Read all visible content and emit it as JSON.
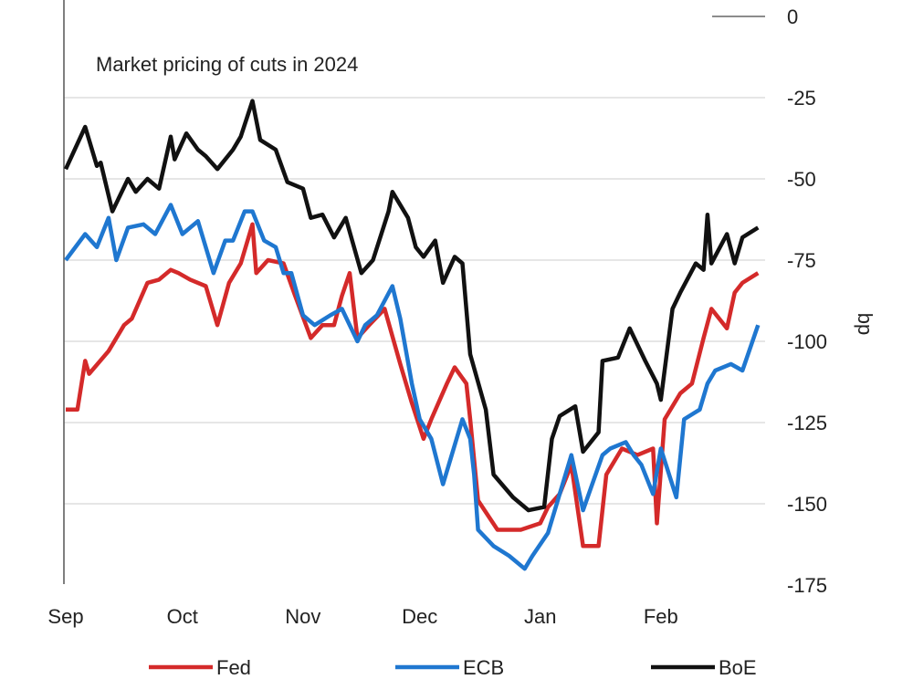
{
  "chart_data": {
    "type": "line",
    "title": "Market pricing of cuts in 2024",
    "xlabel": "",
    "ylabel": "bp",
    "x_unit": "days since 1 Sep 2023",
    "xlim": [
      0,
      178
    ],
    "ylim": [
      -175,
      0
    ],
    "yticks": [
      0,
      -25,
      -50,
      -75,
      -100,
      -125,
      -150,
      -175
    ],
    "ytick_labels": [
      "0",
      "-25",
      "-50",
      "-75",
      "-100",
      "-125",
      "-150",
      "-175"
    ],
    "xticks": [
      0,
      30,
      61,
      91,
      122,
      153
    ],
    "xtick_labels": [
      "Sep",
      "Oct",
      "Nov",
      "Dec",
      "Jan",
      "Feb"
    ],
    "grid": true,
    "legend_position": "bottom",
    "series": [
      {
        "name": "Fed",
        "color": "#d42a2a",
        "points": [
          [
            0,
            -121
          ],
          [
            3,
            -121
          ],
          [
            5,
            -106
          ],
          [
            6,
            -110
          ],
          [
            11,
            -103
          ],
          [
            15,
            -95
          ],
          [
            17,
            -93
          ],
          [
            21,
            -82
          ],
          [
            24,
            -81
          ],
          [
            27,
            -78
          ],
          [
            29,
            -79
          ],
          [
            32,
            -81
          ],
          [
            36,
            -83
          ],
          [
            39,
            -95
          ],
          [
            42,
            -82
          ],
          [
            45,
            -76
          ],
          [
            48,
            -64
          ],
          [
            49,
            -79
          ],
          [
            52,
            -75
          ],
          [
            56,
            -76
          ],
          [
            59,
            -86
          ],
          [
            63,
            -99
          ],
          [
            66,
            -95
          ],
          [
            69,
            -95
          ],
          [
            71,
            -86
          ],
          [
            73,
            -79
          ],
          [
            75,
            -99
          ],
          [
            78,
            -95
          ],
          [
            82,
            -90
          ],
          [
            86,
            -107
          ],
          [
            89,
            -119
          ],
          [
            92,
            -130
          ],
          [
            94,
            -124
          ],
          [
            98,
            -113
          ],
          [
            100,
            -108
          ],
          [
            103,
            -113
          ],
          [
            104,
            -124
          ],
          [
            106,
            -149
          ],
          [
            111,
            -158
          ],
          [
            117,
            -158
          ],
          [
            122,
            -156
          ],
          [
            124,
            -151
          ],
          [
            127,
            -147
          ],
          [
            130,
            -138
          ],
          [
            133,
            -163
          ],
          [
            137,
            -163
          ],
          [
            139,
            -141
          ],
          [
            143,
            -133
          ],
          [
            147,
            -135
          ],
          [
            151,
            -133
          ],
          [
            152,
            -156
          ],
          [
            154,
            -124
          ],
          [
            158,
            -116
          ],
          [
            161,
            -113
          ],
          [
            164,
            -99
          ],
          [
            166,
            -90
          ],
          [
            170,
            -96
          ],
          [
            172,
            -85
          ],
          [
            174,
            -82
          ],
          [
            178,
            -79
          ]
        ]
      },
      {
        "name": "ECB",
        "color": "#1f77d0",
        "points": [
          [
            0,
            -75
          ],
          [
            5,
            -67
          ],
          [
            8,
            -71
          ],
          [
            11,
            -62
          ],
          [
            13,
            -75
          ],
          [
            16,
            -65
          ],
          [
            20,
            -64
          ],
          [
            23,
            -67
          ],
          [
            27,
            -58
          ],
          [
            30,
            -67
          ],
          [
            34,
            -63
          ],
          [
            38,
            -79
          ],
          [
            41,
            -69
          ],
          [
            43,
            -69
          ],
          [
            46,
            -60
          ],
          [
            48,
            -60
          ],
          [
            51,
            -69
          ],
          [
            54,
            -71
          ],
          [
            56,
            -79
          ],
          [
            58,
            -79
          ],
          [
            61,
            -92
          ],
          [
            64,
            -95
          ],
          [
            68,
            -92
          ],
          [
            71,
            -90
          ],
          [
            75,
            -100
          ],
          [
            77,
            -95
          ],
          [
            80,
            -92
          ],
          [
            84,
            -83
          ],
          [
            86,
            -93
          ],
          [
            89,
            -113
          ],
          [
            91,
            -124
          ],
          [
            94,
            -130
          ],
          [
            97,
            -144
          ],
          [
            99,
            -136
          ],
          [
            102,
            -124
          ],
          [
            104,
            -130
          ],
          [
            105,
            -141
          ],
          [
            106,
            -158
          ],
          [
            110,
            -163
          ],
          [
            114,
            -166
          ],
          [
            118,
            -170
          ],
          [
            120,
            -166
          ],
          [
            124,
            -159
          ],
          [
            127,
            -147
          ],
          [
            130,
            -135
          ],
          [
            133,
            -152
          ],
          [
            138,
            -135
          ],
          [
            140,
            -133
          ],
          [
            144,
            -131
          ],
          [
            146,
            -135
          ],
          [
            148,
            -138
          ],
          [
            151,
            -147
          ],
          [
            153,
            -133
          ],
          [
            157,
            -148
          ],
          [
            159,
            -124
          ],
          [
            163,
            -121
          ],
          [
            165,
            -113
          ],
          [
            167,
            -109
          ],
          [
            171,
            -107
          ],
          [
            174,
            -109
          ],
          [
            178,
            -95
          ]
        ]
      },
      {
        "name": "BoE",
        "color": "#111111",
        "points": [
          [
            0,
            -47
          ],
          [
            5,
            -34
          ],
          [
            8,
            -46
          ],
          [
            9,
            -45
          ],
          [
            12,
            -60
          ],
          [
            16,
            -50
          ],
          [
            18,
            -54
          ],
          [
            21,
            -50
          ],
          [
            24,
            -53
          ],
          [
            27,
            -37
          ],
          [
            28,
            -44
          ],
          [
            31,
            -36
          ],
          [
            34,
            -41
          ],
          [
            36,
            -43
          ],
          [
            39,
            -47
          ],
          [
            43,
            -41
          ],
          [
            45,
            -37
          ],
          [
            48,
            -26
          ],
          [
            50,
            -38
          ],
          [
            54,
            -41
          ],
          [
            57,
            -51
          ],
          [
            61,
            -53
          ],
          [
            63,
            -62
          ],
          [
            66,
            -61
          ],
          [
            69,
            -68
          ],
          [
            72,
            -62
          ],
          [
            76,
            -79
          ],
          [
            79,
            -75
          ],
          [
            83,
            -60
          ],
          [
            84,
            -54
          ],
          [
            88,
            -62
          ],
          [
            90,
            -71
          ],
          [
            92,
            -74
          ],
          [
            95,
            -69
          ],
          [
            97,
            -82
          ],
          [
            100,
            -74
          ],
          [
            102,
            -76
          ],
          [
            104,
            -104
          ],
          [
            108,
            -121
          ],
          [
            110,
            -141
          ],
          [
            115,
            -148
          ],
          [
            119,
            -152
          ],
          [
            123,
            -151
          ],
          [
            125,
            -130
          ],
          [
            127,
            -123
          ],
          [
            131,
            -120
          ],
          [
            133,
            -134
          ],
          [
            137,
            -128
          ],
          [
            138,
            -106
          ],
          [
            142,
            -105
          ],
          [
            145,
            -96
          ],
          [
            149,
            -106
          ],
          [
            152,
            -113
          ],
          [
            153,
            -118
          ],
          [
            156,
            -90
          ],
          [
            158,
            -85
          ],
          [
            162,
            -76
          ],
          [
            164,
            -78
          ],
          [
            165,
            -61
          ],
          [
            166,
            -76
          ],
          [
            170,
            -67
          ],
          [
            172,
            -76
          ],
          [
            174,
            -68
          ],
          [
            178,
            -65
          ]
        ]
      }
    ]
  }
}
